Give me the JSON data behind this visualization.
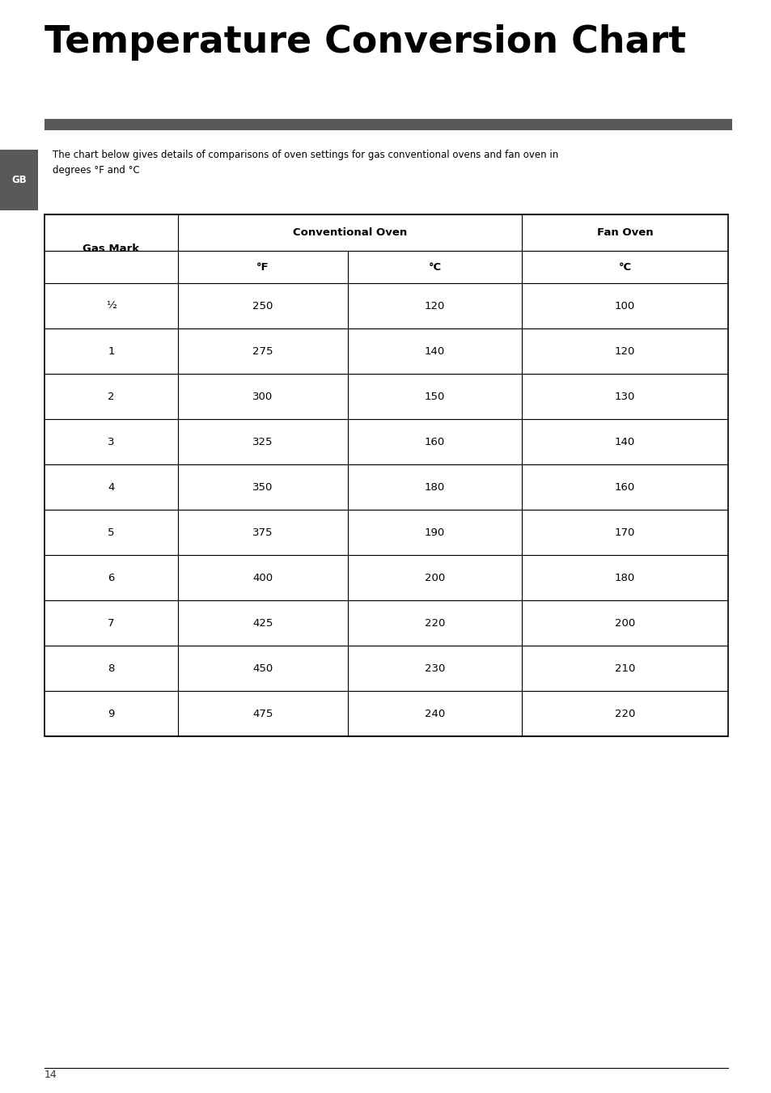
{
  "title": "Temperature Conversion Chart",
  "description": "The chart below gives details of comparisons of oven settings for gas conventional ovens and fan oven in\ndegrees °F and °C",
  "gb_label": "GB",
  "col_headers_row1": [
    "Gas Mark",
    "Conventional Oven",
    "Fan Oven"
  ],
  "col_headers_row2": [
    "",
    "°F",
    "°C",
    "°C"
  ],
  "rows": [
    [
      "½",
      "250",
      "120",
      "100"
    ],
    [
      "1",
      "275",
      "140",
      "120"
    ],
    [
      "2",
      "300",
      "150",
      "130"
    ],
    [
      "3",
      "325",
      "160",
      "140"
    ],
    [
      "4",
      "350",
      "180",
      "160"
    ],
    [
      "5",
      "375",
      "190",
      "170"
    ],
    [
      "6",
      "400",
      "200",
      "180"
    ],
    [
      "7",
      "425",
      "220",
      "200"
    ],
    [
      "8",
      "450",
      "230",
      "210"
    ],
    [
      "9",
      "475",
      "240",
      "220"
    ]
  ],
  "page_number": "14",
  "title_color": "#000000",
  "bar_color": "#595959",
  "gb_bg_color": "#595959",
  "gb_text_color": "#ffffff"
}
